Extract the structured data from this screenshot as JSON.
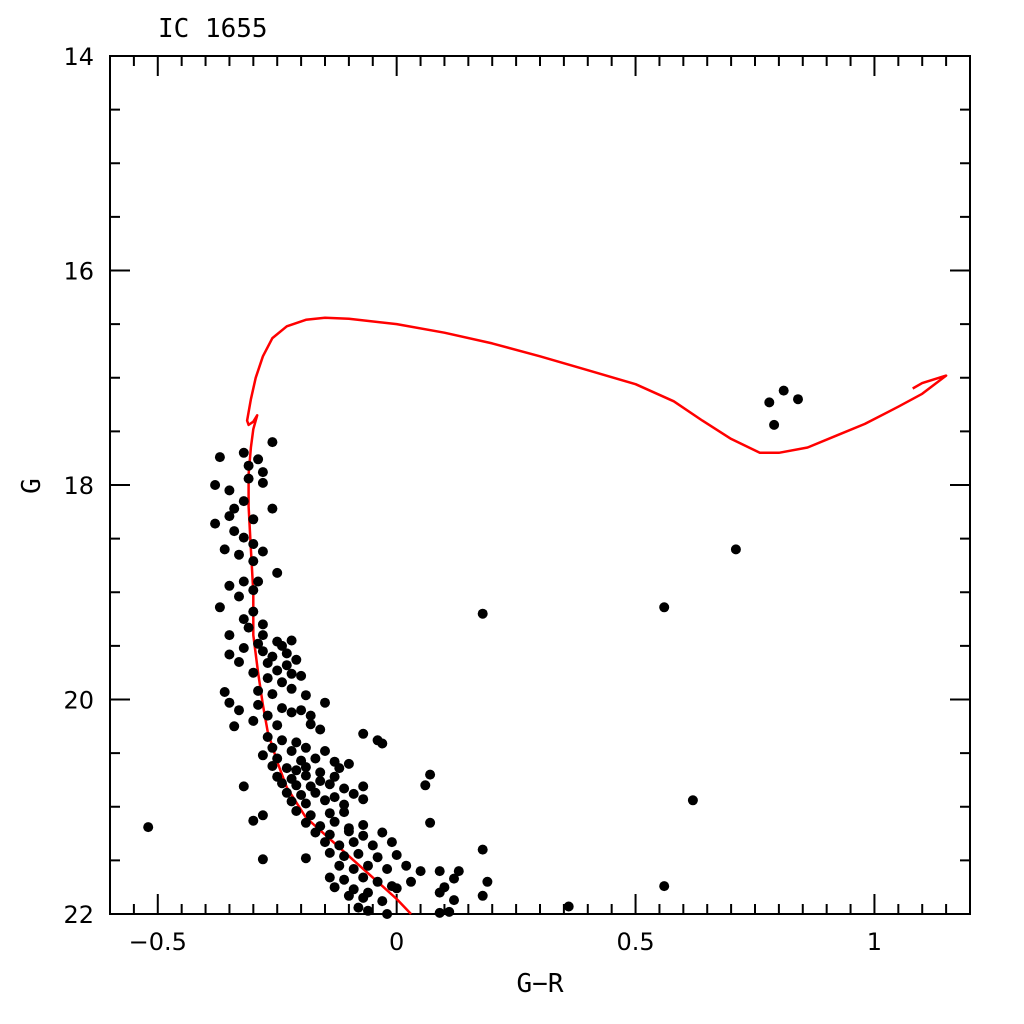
{
  "chart_data": {
    "type": "scatter",
    "title": "IC 1655",
    "xlabel": "G−R",
    "ylabel": "G",
    "xlim": [
      -0.6,
      1.2
    ],
    "ylim": [
      22,
      14
    ],
    "y_inverted": true,
    "grid": false,
    "xticks": [
      -0.5,
      0,
      0.5,
      1
    ],
    "xtick_labels": [
      "−0.5",
      "0",
      "0.5",
      "1"
    ],
    "yticks": [
      14,
      16,
      18,
      20,
      22
    ],
    "ytick_labels": [
      "14",
      "16",
      "18",
      "20",
      "22"
    ],
    "colors": {
      "points": "#000000",
      "isochrone": "#ff0000",
      "axes": "#000000"
    },
    "series": [
      {
        "type": "scatter",
        "points": [
          [
            -0.37,
            17.74
          ],
          [
            -0.32,
            17.7
          ],
          [
            -0.29,
            17.76
          ],
          [
            -0.26,
            17.6
          ],
          [
            -0.28,
            17.88
          ],
          [
            -0.31,
            17.82
          ],
          [
            -0.35,
            18.05
          ],
          [
            -0.38,
            18.0
          ],
          [
            -0.31,
            17.94
          ],
          [
            -0.28,
            17.98
          ],
          [
            -0.34,
            18.22
          ],
          [
            -0.32,
            18.15
          ],
          [
            -0.35,
            18.29
          ],
          [
            -0.38,
            18.36
          ],
          [
            -0.3,
            18.32
          ],
          [
            -0.26,
            18.22
          ],
          [
            -0.34,
            18.43
          ],
          [
            -0.32,
            18.49
          ],
          [
            -0.3,
            18.55
          ],
          [
            -0.36,
            18.6
          ],
          [
            -0.33,
            18.65
          ],
          [
            -0.28,
            18.62
          ],
          [
            -0.3,
            18.71
          ],
          [
            -0.25,
            18.82
          ],
          [
            -0.35,
            18.94
          ],
          [
            -0.32,
            18.9
          ],
          [
            -0.29,
            18.9
          ],
          [
            -0.3,
            18.98
          ],
          [
            -0.33,
            19.04
          ],
          [
            -0.37,
            19.14
          ],
          [
            -0.3,
            19.18
          ],
          [
            -0.32,
            19.25
          ],
          [
            -0.28,
            19.3
          ],
          [
            -0.35,
            19.4
          ],
          [
            -0.31,
            19.33
          ],
          [
            -0.28,
            19.4
          ],
          [
            -0.25,
            19.46
          ],
          [
            -0.29,
            19.48
          ],
          [
            -0.24,
            19.5
          ],
          [
            -0.22,
            19.45
          ],
          [
            -0.32,
            19.52
          ],
          [
            -0.28,
            19.55
          ],
          [
            -0.26,
            19.6
          ],
          [
            -0.23,
            19.57
          ],
          [
            -0.35,
            19.58
          ],
          [
            -0.33,
            19.65
          ],
          [
            -0.27,
            19.66
          ],
          [
            -0.23,
            19.68
          ],
          [
            -0.21,
            19.63
          ],
          [
            -0.25,
            19.73
          ],
          [
            -0.22,
            19.76
          ],
          [
            -0.3,
            19.75
          ],
          [
            -0.27,
            19.8
          ],
          [
            -0.2,
            19.78
          ],
          [
            -0.24,
            19.84
          ],
          [
            -0.22,
            19.9
          ],
          [
            -0.29,
            19.92
          ],
          [
            -0.26,
            19.95
          ],
          [
            -0.36,
            19.93
          ],
          [
            -0.19,
            19.96
          ],
          [
            -0.35,
            20.03
          ],
          [
            -0.29,
            20.05
          ],
          [
            -0.24,
            20.08
          ],
          [
            -0.2,
            20.1
          ],
          [
            -0.15,
            20.03
          ],
          [
            -0.33,
            20.1
          ],
          [
            -0.27,
            20.15
          ],
          [
            -0.22,
            20.12
          ],
          [
            -0.18,
            20.15
          ],
          [
            -0.34,
            20.25
          ],
          [
            -0.3,
            20.2
          ],
          [
            -0.25,
            20.24
          ],
          [
            -0.18,
            20.23
          ],
          [
            -0.27,
            20.35
          ],
          [
            -0.24,
            20.38
          ],
          [
            -0.21,
            20.4
          ],
          [
            -0.16,
            20.28
          ],
          [
            -0.07,
            20.32
          ],
          [
            -0.04,
            20.38
          ],
          [
            -0.03,
            20.41
          ],
          [
            -0.26,
            20.45
          ],
          [
            -0.22,
            20.48
          ],
          [
            -0.19,
            20.45
          ],
          [
            -0.15,
            20.48
          ],
          [
            -0.28,
            20.52
          ],
          [
            -0.25,
            20.55
          ],
          [
            -0.2,
            20.57
          ],
          [
            -0.17,
            20.55
          ],
          [
            -0.13,
            20.58
          ],
          [
            -0.1,
            20.6
          ],
          [
            -0.26,
            20.62
          ],
          [
            -0.23,
            20.64
          ],
          [
            -0.21,
            20.66
          ],
          [
            -0.19,
            20.63
          ],
          [
            -0.16,
            20.68
          ],
          [
            -0.12,
            20.64
          ],
          [
            -0.25,
            20.72
          ],
          [
            -0.22,
            20.74
          ],
          [
            -0.19,
            20.71
          ],
          [
            -0.16,
            20.76
          ],
          [
            -0.13,
            20.72
          ],
          [
            -0.24,
            20.78
          ],
          [
            -0.21,
            20.8
          ],
          [
            -0.18,
            20.81
          ],
          [
            -0.14,
            20.79
          ],
          [
            -0.11,
            20.83
          ],
          [
            -0.07,
            20.81
          ],
          [
            -0.23,
            20.87
          ],
          [
            -0.2,
            20.89
          ],
          [
            -0.17,
            20.87
          ],
          [
            -0.13,
            20.91
          ],
          [
            -0.09,
            20.88
          ],
          [
            -0.22,
            20.95
          ],
          [
            -0.19,
            20.97
          ],
          [
            -0.15,
            20.94
          ],
          [
            -0.11,
            20.98
          ],
          [
            -0.07,
            20.93
          ],
          [
            -0.32,
            20.81
          ],
          [
            -0.3,
            21.13
          ],
          [
            -0.28,
            21.08
          ],
          [
            -0.21,
            21.04
          ],
          [
            -0.18,
            21.08
          ],
          [
            -0.14,
            21.06
          ],
          [
            -0.11,
            21.05
          ],
          [
            -0.19,
            21.15
          ],
          [
            -0.16,
            21.18
          ],
          [
            -0.13,
            21.14
          ],
          [
            -0.1,
            21.2
          ],
          [
            -0.07,
            21.17
          ],
          [
            -0.17,
            21.24
          ],
          [
            -0.14,
            21.26
          ],
          [
            -0.1,
            21.23
          ],
          [
            -0.07,
            21.27
          ],
          [
            -0.03,
            21.24
          ],
          [
            -0.15,
            21.33
          ],
          [
            -0.12,
            21.36
          ],
          [
            -0.09,
            21.33
          ],
          [
            -0.05,
            21.36
          ],
          [
            -0.01,
            21.33
          ],
          [
            -0.14,
            21.43
          ],
          [
            -0.11,
            21.46
          ],
          [
            -0.08,
            21.44
          ],
          [
            -0.04,
            21.47
          ],
          [
            -0.28,
            21.49
          ],
          [
            -0.19,
            21.48
          ],
          [
            -0.12,
            21.55
          ],
          [
            -0.09,
            21.58
          ],
          [
            -0.06,
            21.55
          ],
          [
            -0.02,
            21.58
          ],
          [
            0.02,
            21.55
          ],
          [
            -0.14,
            21.66
          ],
          [
            -0.11,
            21.68
          ],
          [
            -0.07,
            21.66
          ],
          [
            -0.04,
            21.7
          ],
          [
            -0.01,
            21.74
          ],
          [
            0.03,
            21.7
          ],
          [
            -0.13,
            21.75
          ],
          [
            -0.09,
            21.77
          ],
          [
            -0.06,
            21.8
          ],
          [
            0.0,
            21.76
          ],
          [
            -0.1,
            21.83
          ],
          [
            -0.07,
            21.85
          ],
          [
            -0.03,
            21.88
          ],
          [
            -0.08,
            21.94
          ],
          [
            -0.06,
            21.97
          ],
          [
            -0.02,
            22.0
          ],
          [
            0.07,
            20.7
          ],
          [
            0.06,
            20.8
          ],
          [
            0.07,
            21.15
          ],
          [
            0.0,
            21.45
          ],
          [
            0.05,
            21.6
          ],
          [
            0.09,
            21.6
          ],
          [
            0.13,
            21.6
          ],
          [
            0.12,
            21.67
          ],
          [
            0.1,
            21.75
          ],
          [
            0.09,
            21.8
          ],
          [
            0.12,
            21.87
          ],
          [
            0.09,
            21.99
          ],
          [
            0.11,
            21.98
          ],
          [
            0.19,
            21.7
          ],
          [
            0.18,
            21.83
          ],
          [
            0.18,
            21.4
          ],
          [
            0.18,
            19.2
          ],
          [
            0.36,
            21.93
          ],
          [
            0.56,
            19.14
          ],
          [
            0.56,
            21.74
          ],
          [
            0.62,
            20.94
          ],
          [
            0.71,
            18.6
          ],
          [
            0.78,
            17.23
          ],
          [
            0.81,
            17.12
          ],
          [
            0.84,
            17.2
          ],
          [
            0.79,
            17.44
          ],
          [
            -0.52,
            21.19
          ]
        ]
      },
      {
        "type": "line",
        "points": [
          [
            0.03,
            22.0
          ],
          [
            0.0,
            21.86
          ],
          [
            -0.04,
            21.7
          ],
          [
            -0.09,
            21.5
          ],
          [
            -0.14,
            21.3
          ],
          [
            -0.19,
            21.1
          ],
          [
            -0.23,
            20.82
          ],
          [
            -0.25,
            20.58
          ],
          [
            -0.27,
            20.3
          ],
          [
            -0.28,
            20.05
          ],
          [
            -0.29,
            19.75
          ],
          [
            -0.3,
            19.4
          ],
          [
            -0.3,
            19.0
          ],
          [
            -0.305,
            18.6
          ],
          [
            -0.31,
            18.2
          ],
          [
            -0.31,
            17.9
          ],
          [
            -0.305,
            17.65
          ],
          [
            -0.3,
            17.48
          ],
          [
            -0.292,
            17.35
          ],
          [
            -0.3,
            17.41
          ],
          [
            -0.31,
            17.44
          ],
          [
            -0.313,
            17.4
          ],
          [
            -0.31,
            17.32
          ],
          [
            -0.305,
            17.2
          ],
          [
            -0.295,
            17.0
          ],
          [
            -0.28,
            16.8
          ],
          [
            -0.26,
            16.63
          ],
          [
            -0.23,
            16.52
          ],
          [
            -0.19,
            16.46
          ],
          [
            -0.15,
            16.44
          ],
          [
            -0.1,
            16.45
          ],
          [
            0.0,
            16.5
          ],
          [
            0.1,
            16.58
          ],
          [
            0.2,
            16.68
          ],
          [
            0.3,
            16.8
          ],
          [
            0.4,
            16.93
          ],
          [
            0.5,
            17.06
          ],
          [
            0.58,
            17.22
          ],
          [
            0.64,
            17.4
          ],
          [
            0.7,
            17.57
          ],
          [
            0.76,
            17.7
          ],
          [
            0.8,
            17.7
          ],
          [
            0.86,
            17.65
          ],
          [
            0.92,
            17.54
          ],
          [
            0.98,
            17.43
          ],
          [
            1.05,
            17.27
          ],
          [
            1.1,
            17.15
          ],
          [
            1.15,
            16.98
          ],
          [
            1.1,
            17.05
          ],
          [
            1.08,
            17.1
          ]
        ]
      }
    ]
  }
}
